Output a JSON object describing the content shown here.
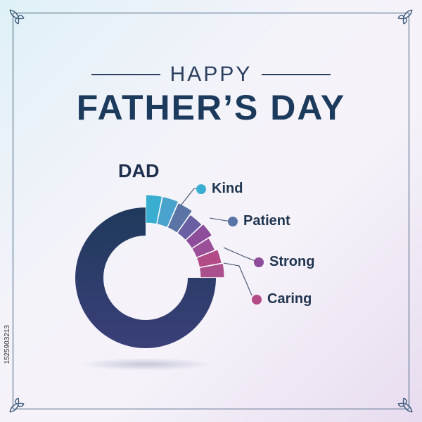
{
  "heading": {
    "happy": "HAPPY",
    "title": "FATHER’S DAY"
  },
  "chart_data": {
    "type": "pie",
    "title": "DAD",
    "categories": [
      "DAD",
      "Kind",
      "Patient",
      "Strong",
      "Caring"
    ],
    "values": [
      75,
      6.5,
      6.5,
      6,
      6
    ],
    "series": [
      {
        "name": "Kind",
        "color": "#3aaed0"
      },
      {
        "name": "Patient",
        "color": "#5a74a6"
      },
      {
        "name": "Strong",
        "color": "#8d4d9b"
      },
      {
        "name": "Caring",
        "color": "#b24b88"
      }
    ],
    "ring_color": "#283d66",
    "legend_placement": "right"
  },
  "legend": [
    {
      "label": "Kind",
      "color": "#3aaed0"
    },
    {
      "label": "Patient",
      "color": "#5a74a6"
    },
    {
      "label": "Strong",
      "color": "#8d4d9b"
    },
    {
      "label": "Caring",
      "color": "#b24b88"
    }
  ],
  "stock_id": "1525903213",
  "icons": [
    "floral-corner-icon"
  ]
}
